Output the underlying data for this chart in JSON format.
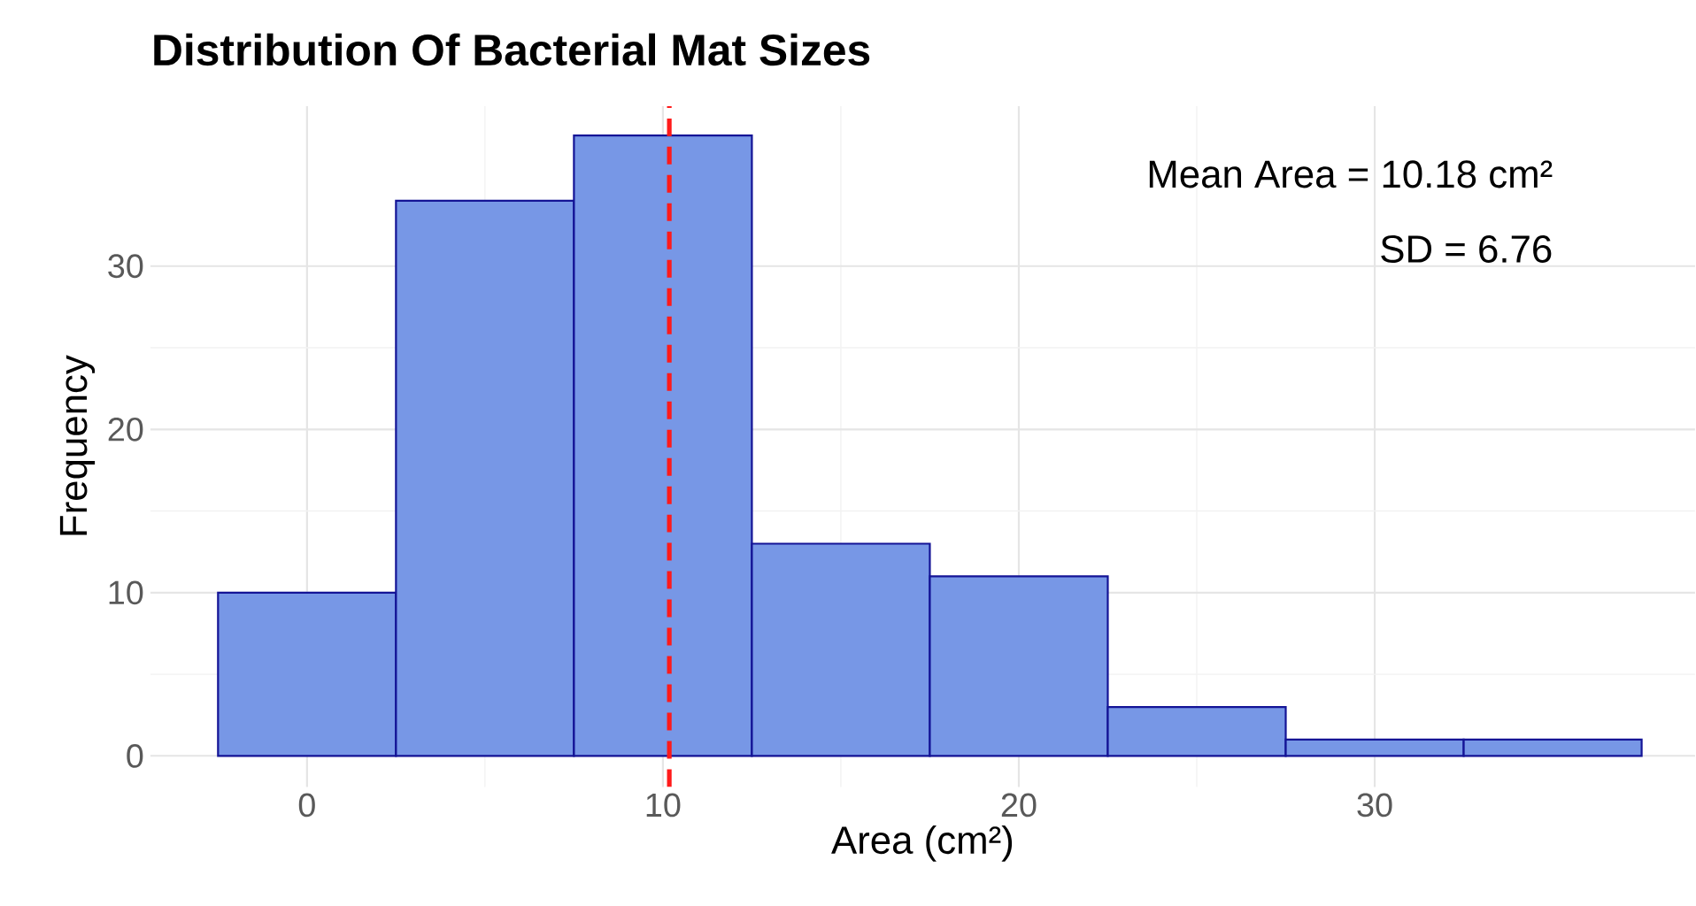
{
  "chart_data": {
    "type": "histogram",
    "title": "Distribution Of Bacterial Mat Sizes",
    "xlabel": "Area (cm²)",
    "ylabel": "Frequency",
    "bins": [
      -2.5,
      2.5,
      7.5,
      12.5,
      17.5,
      22.5,
      27.5,
      32.5,
      37.5
    ],
    "values": [
      10,
      34,
      38,
      13,
      11,
      3,
      1,
      1
    ],
    "color": "#7797e6",
    "xlim": [
      -4.4,
      39
    ],
    "ylim": [
      -1.9,
      39.8
    ],
    "xticks": [
      0,
      10,
      20,
      30
    ],
    "yticks": [
      0,
      10,
      20,
      30
    ],
    "grid": true,
    "ref_lines": [
      {
        "axis": "x",
        "value": 10.18,
        "color": "#ff1a1a",
        "line_style": "dashed"
      }
    ],
    "annotations": [
      "Mean Area = 10.18 cm²",
      "SD = 6.76"
    ]
  }
}
